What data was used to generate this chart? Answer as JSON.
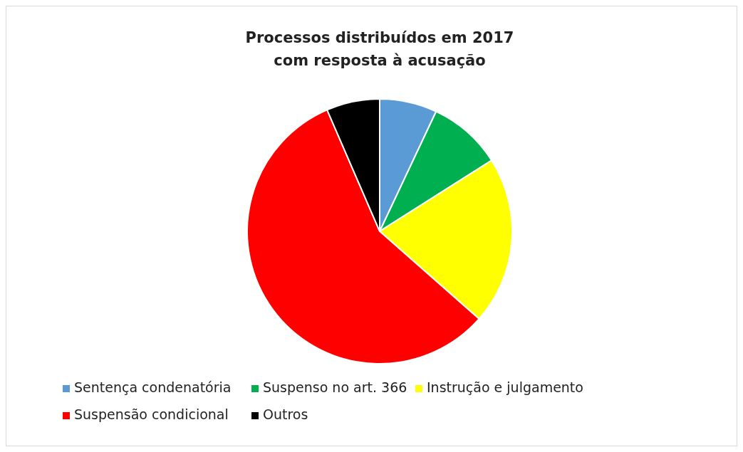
{
  "chart_data": {
    "type": "pie",
    "title": "Processos distribuídos em 2017\ncom resposta à acusação",
    "categories": [
      "Sentença condenatória",
      "Suspenso no art. 366",
      "Instrução e julgamento",
      "Suspensão condicional",
      "Outros"
    ],
    "values": [
      7,
      9,
      20.5,
      57,
      6.5
    ],
    "colors": [
      "#5b9bd5",
      "#00b050",
      "#ffff00",
      "#ff0000",
      "#000000"
    ],
    "legend": "bottom"
  }
}
